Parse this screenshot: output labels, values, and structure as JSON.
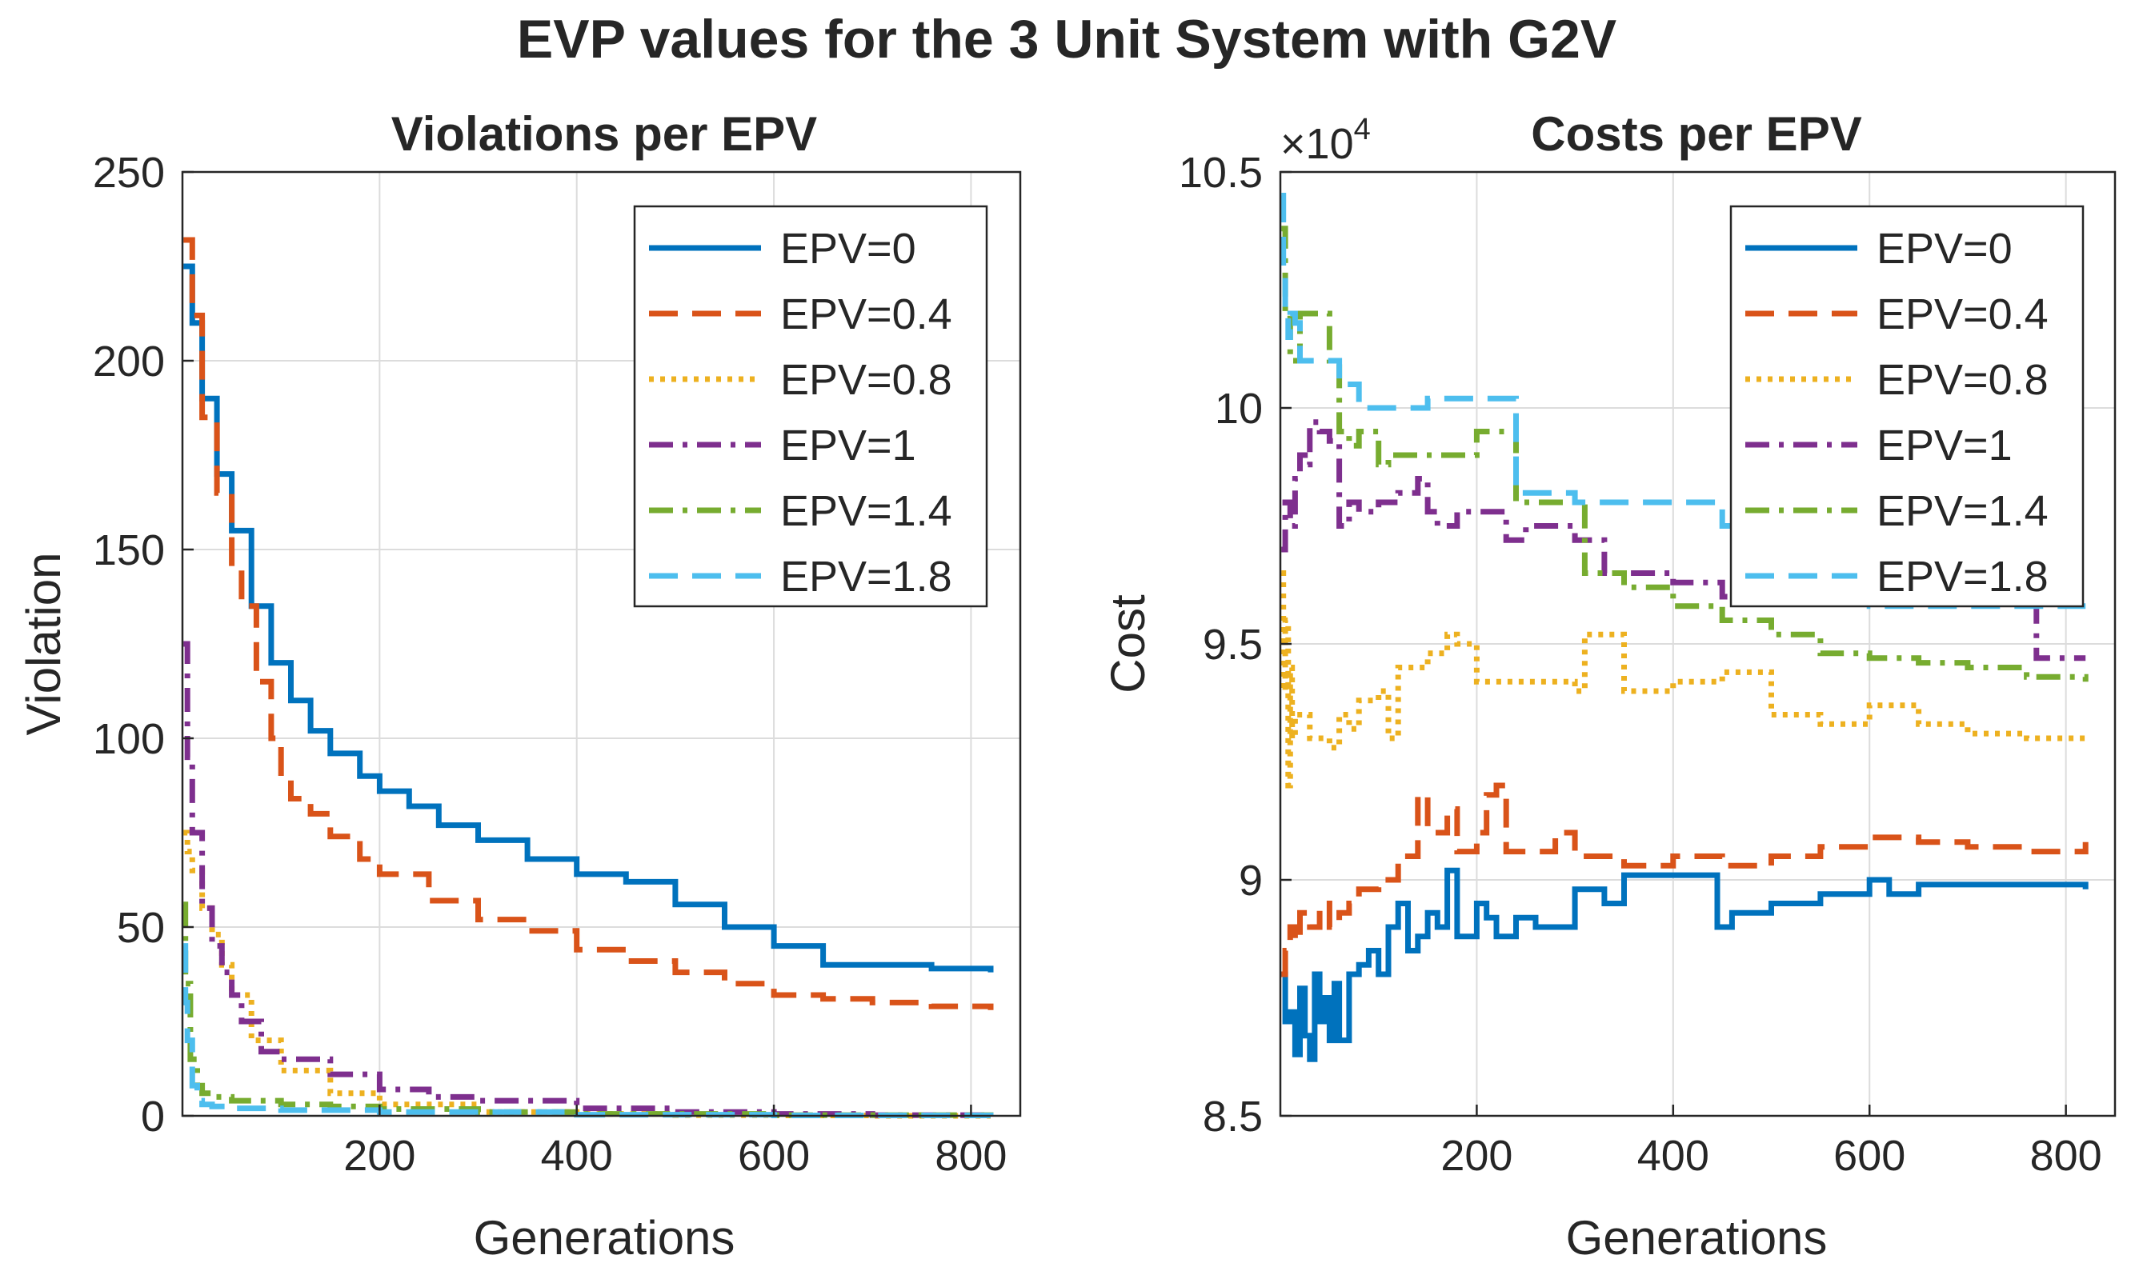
{
  "title": "EVP values for the 3 Unit System with G2V",
  "colors": {
    "EPV=0": "#0072BD",
    "EPV=0.4": "#D95319",
    "EPV=0.8": "#EDB120",
    "EPV=1": "#7E2F8E",
    "EPV=1.4": "#77AC30",
    "EPV=1.8": "#4DBEEE"
  },
  "chart_data": [
    {
      "type": "line",
      "title": "Violations per EPV",
      "xlabel": "Generations",
      "ylabel": "Violation",
      "xlim": [
        0,
        850
      ],
      "ylim": [
        0,
        250
      ],
      "xticks": [
        200,
        400,
        600,
        800
      ],
      "xtick_labels": [
        "200",
        "400",
        "600",
        "800"
      ],
      "yticks": [
        0,
        50,
        100,
        150,
        200,
        250
      ],
      "ytick_labels": [
        "0",
        "50",
        "100",
        "150",
        "200",
        "250"
      ],
      "grid": true,
      "legend": "top-right",
      "series": [
        {
          "name": "EPV=0",
          "style": "solid",
          "x": [
            1,
            10,
            20,
            35,
            50,
            70,
            90,
            110,
            130,
            150,
            180,
            200,
            230,
            260,
            300,
            350,
            400,
            450,
            500,
            550,
            600,
            650,
            700,
            760,
            820
          ],
          "y": [
            225,
            210,
            190,
            170,
            155,
            135,
            120,
            110,
            102,
            96,
            90,
            86,
            82,
            77,
            73,
            68,
            64,
            62,
            56,
            50,
            45,
            40,
            40,
            39,
            38
          ]
        },
        {
          "name": "EPV=0.4",
          "style": "dashed",
          "x": [
            1,
            10,
            20,
            35,
            50,
            60,
            75,
            90,
            100,
            110,
            130,
            150,
            180,
            200,
            250,
            300,
            350,
            400,
            450,
            500,
            550,
            600,
            650,
            700,
            760,
            820
          ],
          "y": [
            232,
            212,
            185,
            165,
            145,
            135,
            115,
            100,
            90,
            84,
            80,
            74,
            68,
            64,
            57,
            52,
            49,
            44,
            41,
            38,
            35,
            32,
            31,
            30,
            29,
            28
          ]
        },
        {
          "name": "EPV=0.8",
          "style": "dotted",
          "x": [
            1,
            5,
            10,
            20,
            30,
            40,
            50,
            70,
            100,
            150,
            200,
            300,
            400,
            500,
            600,
            700,
            820
          ],
          "y": [
            75,
            70,
            65,
            55,
            48,
            40,
            32,
            20,
            12,
            6,
            3,
            1,
            0.5,
            0.2,
            0.1,
            0,
            0
          ]
        },
        {
          "name": "EPV=1",
          "style": "dashdot",
          "x": [
            1,
            5,
            10,
            20,
            30,
            40,
            50,
            60,
            80,
            100,
            150,
            200,
            250,
            300,
            400,
            500,
            600,
            700,
            820
          ],
          "y": [
            125,
            95,
            75,
            55,
            45,
            38,
            32,
            25,
            17,
            15,
            11,
            7,
            5,
            4,
            2,
            1,
            0.5,
            0.2,
            0.1
          ]
        },
        {
          "name": "EPV=1.4",
          "style": "dashdot",
          "x": [
            1,
            3,
            8,
            15,
            20,
            30,
            50,
            100,
            150,
            200,
            300,
            400,
            600,
            820
          ],
          "y": [
            56,
            35,
            15,
            8,
            6,
            5,
            4,
            3,
            2.5,
            1.8,
            1,
            0.5,
            0.2,
            0.1
          ]
        },
        {
          "name": "EPV=1.8",
          "style": "dashed",
          "x": [
            1,
            3,
            5,
            10,
            15,
            20,
            30,
            50,
            100,
            200,
            400,
            600,
            820
          ],
          "y": [
            45,
            30,
            20,
            8,
            4,
            3,
            2.5,
            2,
            1.5,
            1,
            0.3,
            0.1,
            0
          ]
        }
      ]
    },
    {
      "type": "line",
      "title": "Costs per EPV",
      "xlabel": "Generations",
      "ylabel": "Cost",
      "multiplier": "×10",
      "multiplier_exp": "4",
      "xlim": [
        0,
        850
      ],
      "ylim": [
        8.5,
        10.5
      ],
      "xticks": [
        200,
        400,
        600,
        800
      ],
      "xtick_labels": [
        "200",
        "400",
        "600",
        "800"
      ],
      "yticks": [
        8.5,
        9,
        9.5,
        10,
        10.5
      ],
      "ytick_labels": [
        "8.5",
        "9",
        "9.5",
        "10",
        "10.5"
      ],
      "grid": true,
      "legend": "top-right",
      "series": [
        {
          "name": "EPV=0",
          "style": "solid",
          "x": [
            1,
            5,
            10,
            15,
            20,
            25,
            30,
            35,
            40,
            45,
            50,
            55,
            60,
            70,
            80,
            90,
            100,
            110,
            120,
            130,
            140,
            150,
            160,
            170,
            180,
            200,
            210,
            220,
            240,
            260,
            300,
            330,
            350,
            400,
            440,
            445,
            460,
            480,
            500,
            550,
            600,
            620,
            650,
            700,
            820
          ],
          "y": [
            8.8,
            8.7,
            8.72,
            8.63,
            8.77,
            8.67,
            8.62,
            8.8,
            8.7,
            8.75,
            8.66,
            8.78,
            8.66,
            8.8,
            8.82,
            8.85,
            8.8,
            8.9,
            8.95,
            8.85,
            8.88,
            8.93,
            8.9,
            9.02,
            8.88,
            8.95,
            8.92,
            8.88,
            8.92,
            8.9,
            8.98,
            8.95,
            9.01,
            9.01,
            9.01,
            8.9,
            8.93,
            8.93,
            8.95,
            8.97,
            9.0,
            8.97,
            8.99,
            8.99,
            8.98
          ]
        },
        {
          "name": "EPV=0.4",
          "style": "dashed",
          "x": [
            1,
            5,
            10,
            15,
            20,
            30,
            40,
            50,
            60,
            70,
            80,
            100,
            120,
            140,
            150,
            160,
            170,
            180,
            200,
            210,
            220,
            230,
            250,
            280,
            300,
            350,
            400,
            450,
            500,
            550,
            600,
            650,
            700,
            760,
            820
          ],
          "y": [
            8.8,
            8.85,
            8.9,
            8.87,
            8.93,
            8.9,
            8.95,
            8.9,
            8.93,
            8.95,
            8.98,
            9.0,
            9.05,
            9.18,
            9.1,
            9.1,
            9.15,
            9.06,
            9.1,
            9.18,
            9.2,
            9.06,
            9.06,
            9.1,
            9.05,
            9.03,
            9.05,
            9.03,
            9.05,
            9.07,
            9.09,
            9.08,
            9.07,
            9.06,
            9.08
          ]
        },
        {
          "name": "EPV=0.8",
          "style": "dotted",
          "x": [
            1,
            3,
            5,
            8,
            10,
            12,
            15,
            20,
            30,
            40,
            50,
            60,
            70,
            80,
            100,
            110,
            120,
            150,
            170,
            180,
            200,
            250,
            300,
            310,
            350,
            400,
            450,
            500,
            550,
            600,
            650,
            700,
            760,
            820
          ],
          "y": [
            9.65,
            9.4,
            9.55,
            9.2,
            9.45,
            9.3,
            9.35,
            9.35,
            9.3,
            9.3,
            9.28,
            9.35,
            9.32,
            9.38,
            9.4,
            9.3,
            9.45,
            9.48,
            9.52,
            9.5,
            9.42,
            9.42,
            9.4,
            9.52,
            9.4,
            9.42,
            9.44,
            9.35,
            9.33,
            9.37,
            9.33,
            9.31,
            9.3,
            9.29
          ]
        },
        {
          "name": "EPV=1",
          "style": "dashdot",
          "x": [
            1,
            5,
            10,
            15,
            20,
            25,
            30,
            40,
            50,
            60,
            70,
            80,
            100,
            120,
            140,
            150,
            160,
            180,
            200,
            220,
            230,
            250,
            300,
            330,
            350,
            400,
            440,
            450,
            500,
            550,
            600,
            650,
            700,
            760,
            770,
            820
          ],
          "y": [
            9.7,
            9.8,
            9.75,
            9.85,
            9.9,
            9.88,
            9.97,
            9.95,
            9.93,
            9.75,
            9.8,
            9.78,
            9.8,
            9.82,
            9.85,
            9.78,
            9.75,
            9.78,
            9.78,
            9.78,
            9.72,
            9.75,
            9.72,
            9.65,
            9.65,
            9.63,
            9.63,
            9.6,
            9.6,
            9.6,
            9.6,
            9.6,
            9.6,
            9.6,
            9.47,
            9.47
          ]
        },
        {
          "name": "EPV=1.4",
          "style": "dashdot",
          "x": [
            1,
            5,
            10,
            20,
            30,
            40,
            50,
            60,
            70,
            80,
            100,
            110,
            150,
            200,
            220,
            240,
            260,
            300,
            310,
            350,
            400,
            450,
            500,
            550,
            600,
            650,
            700,
            760,
            820
          ],
          "y": [
            10.38,
            10.2,
            10.1,
            10.2,
            10.2,
            10.2,
            10.1,
            9.95,
            9.92,
            9.95,
            9.88,
            9.9,
            9.9,
            9.95,
            9.95,
            9.8,
            9.8,
            9.8,
            9.65,
            9.62,
            9.58,
            9.55,
            9.52,
            9.48,
            9.47,
            9.46,
            9.45,
            9.43,
            9.42
          ]
        },
        {
          "name": "EPV=1.8",
          "style": "dashed",
          "x": [
            1,
            3,
            5,
            8,
            10,
            15,
            20,
            30,
            50,
            60,
            80,
            100,
            150,
            200,
            220,
            240,
            260,
            300,
            350,
            400,
            450,
            500,
            550,
            600,
            650,
            700,
            760,
            820
          ],
          "y": [
            10.45,
            10.3,
            10.2,
            10.15,
            10.2,
            10.18,
            10.1,
            10.1,
            10.1,
            10.05,
            10.0,
            10.0,
            10.02,
            10.02,
            10.02,
            9.82,
            9.82,
            9.8,
            9.8,
            9.8,
            9.75,
            9.62,
            9.62,
            9.58,
            9.58,
            9.58,
            9.58,
            9.58
          ]
        }
      ]
    }
  ]
}
